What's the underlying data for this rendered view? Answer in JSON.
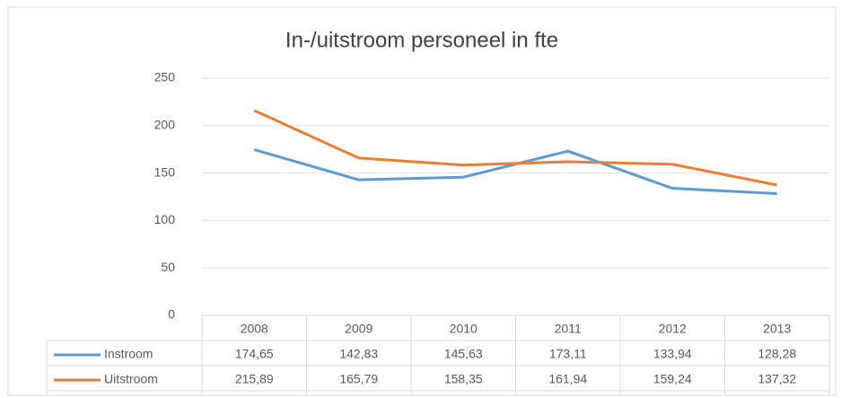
{
  "chart_data": {
    "type": "line",
    "title": "In-/uitstroom personeel in fte",
    "categories": [
      "2008",
      "2009",
      "2010",
      "2011",
      "2012",
      "2013"
    ],
    "series": [
      {
        "name": "Instroom",
        "color": "#5b9bd5",
        "values": [
          174.65,
          142.83,
          145.63,
          173.11,
          133.94,
          128.28
        ],
        "value_labels": [
          "174,65",
          "142,83",
          "145,63",
          "173,11",
          "133,94",
          "128,28"
        ]
      },
      {
        "name": "Uitstroom",
        "color": "#ed7d31",
        "values": [
          215.89,
          165.79,
          158.35,
          161.94,
          159.24,
          137.32
        ],
        "value_labels": [
          "215,89",
          "165,79",
          "158,35",
          "161,94",
          "159,24",
          "137,32"
        ]
      }
    ],
    "ylim": [
      0,
      250
    ],
    "yticks": [
      0,
      50,
      100,
      150,
      200,
      250
    ],
    "grid": true
  }
}
